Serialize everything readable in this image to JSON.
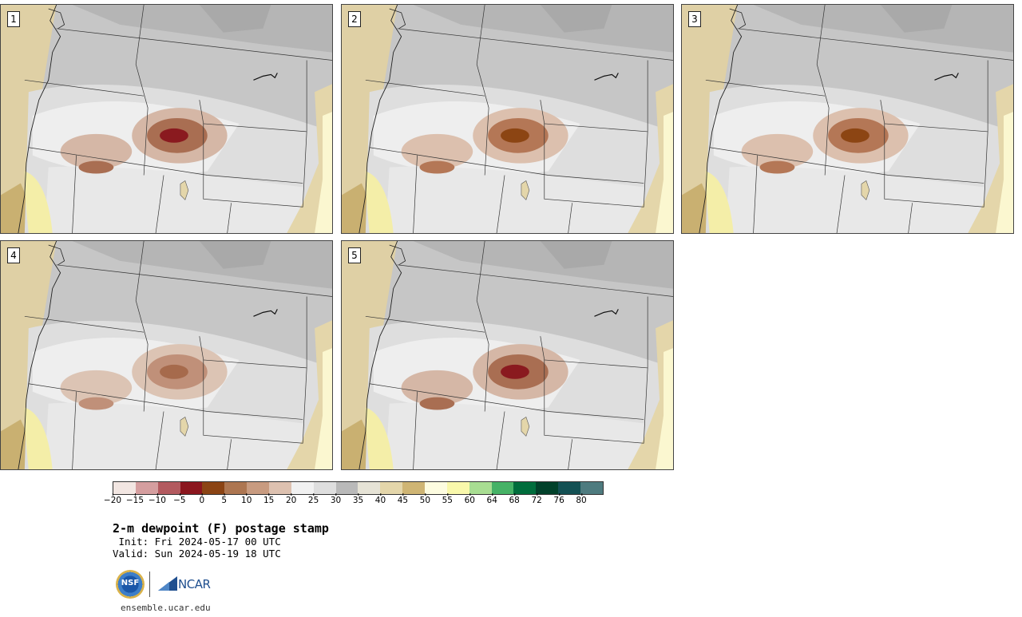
{
  "panels": [
    {
      "label": "1",
      "core": "#8a1a1f",
      "ring": "#a96e52",
      "halo": "#d5b7a6"
    },
    {
      "label": "2",
      "core": "#8c4513",
      "ring": "#b47756",
      "halo": "#dcc0ae"
    },
    {
      "label": "3",
      "core": "#8c4513",
      "ring": "#b47756",
      "halo": "#dcc0ae"
    },
    {
      "label": "4",
      "core": "#a66a4c",
      "ring": "#c09079",
      "halo": "#dcc4b4"
    },
    {
      "label": "5",
      "core": "#8a1a1f",
      "ring": "#a96e52",
      "halo": "#d5b7a6"
    }
  ],
  "colorbar": {
    "colors": [
      "#f2e6e2",
      "#d59e9f",
      "#b35a5f",
      "#8b161e",
      "#8b4414",
      "#ad7651",
      "#c89b80",
      "#ddc1b0",
      "#f1f1f1",
      "#dedede",
      "#b9b9b9",
      "#e6e3d6",
      "#e4d6aa",
      "#cfb574",
      "#fdfce0",
      "#f9f8ab",
      "#a8dd92",
      "#46b266",
      "#006d3c",
      "#01412a",
      "#145154",
      "#4e7b7f"
    ],
    "tick_labels": [
      "−20",
      "−15",
      "−10",
      "−5",
      "0",
      "5",
      "10",
      "15",
      "20",
      "25",
      "30",
      "35",
      "40",
      "45",
      "50",
      "55",
      "60",
      "64",
      "68",
      "72",
      "76",
      "80"
    ]
  },
  "title": "2-m dewpoint (F) postage stamp",
  "init": " Init: Fri 2024-05-17 00 UTC",
  "valid": "Valid: Sun 2024-05-19 18 UTC",
  "logos": {
    "nsf": "NSF",
    "ncar": "NCAR"
  },
  "site": "ensemble.ucar.edu"
}
